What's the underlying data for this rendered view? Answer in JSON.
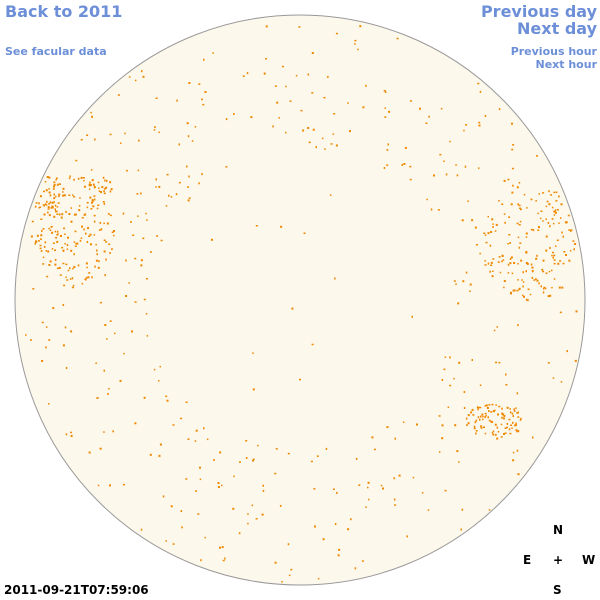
{
  "nav": {
    "back": "Back to 2011",
    "facular": "See facular data",
    "prev_day": "Previous day",
    "next_day": "Next day",
    "prev_hour": "Previous hour",
    "next_hour": "Next hour"
  },
  "compass": {
    "n": "N",
    "e": "E",
    "center": "+",
    "w": "W",
    "s": "S"
  },
  "timestamp": "2011-09-21T07:59:06",
  "colors": {
    "link": "#6c8fd8",
    "disk_fill": "#fdf8ec",
    "disk_border": "#999999",
    "facula": "#ee8800"
  }
}
